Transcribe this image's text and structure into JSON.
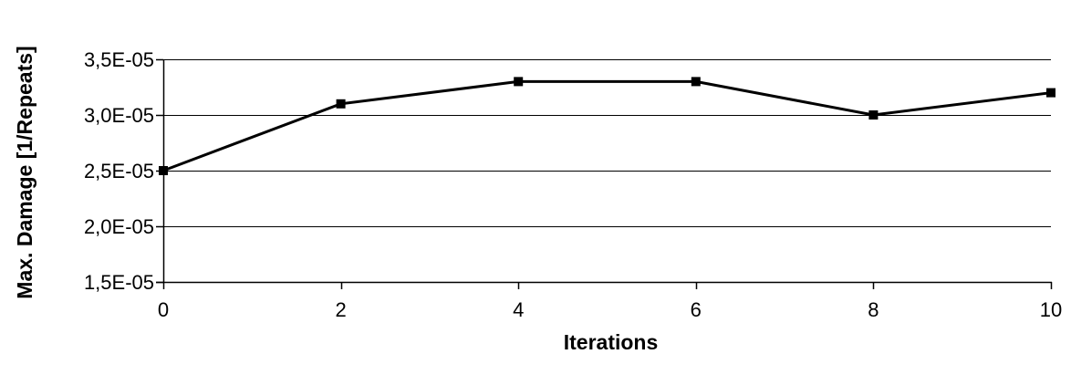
{
  "chart_data": {
    "type": "line",
    "title": "",
    "xlabel": "Iterations",
    "ylabel": "Max. Damage [1/Repeats]",
    "x": [
      0,
      2,
      4,
      6,
      8,
      10
    ],
    "series": [
      {
        "values": [
          2.5e-05,
          3.1e-05,
          3.3e-05,
          3.3e-05,
          3e-05,
          3.2e-05
        ]
      }
    ],
    "xlim": [
      0,
      10
    ],
    "ylim": [
      1.5e-05,
      3.5e-05
    ],
    "x_ticks": [
      0,
      2,
      4,
      6,
      8,
      10
    ],
    "x_tick_labels": [
      "0",
      "2",
      "4",
      "6",
      "8",
      "10"
    ],
    "y_ticks": [
      1.5e-05,
      2e-05,
      2.5e-05,
      3e-05,
      3.5e-05
    ],
    "y_tick_labels": [
      "1,5E-05",
      "2,0E-05",
      "2,5E-05",
      "3,0E-05",
      "3,5E-05"
    ],
    "grid": "horizontal",
    "legend": "none",
    "marker": "square",
    "line_color": "#000000",
    "grid_color": "#000000"
  }
}
